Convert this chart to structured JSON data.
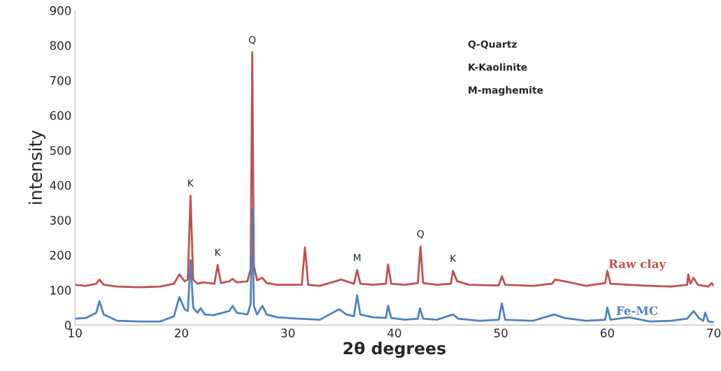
{
  "chart_data": {
    "type": "line",
    "xlabel": "2θ degrees",
    "ylabel": "intensity",
    "xlim": [
      10,
      70
    ],
    "xticks": [
      10,
      20,
      30,
      40,
      50,
      60,
      70
    ],
    "ylim": [
      0,
      900
    ],
    "yticks": [
      0,
      100,
      200,
      300,
      400,
      500,
      600,
      700,
      800,
      900
    ],
    "grid": false,
    "legend": false,
    "series": [
      {
        "name": "Raw clay",
        "color": "#c0504d",
        "x": [
          10,
          11,
          12,
          12.3,
          12.7,
          14,
          16,
          18,
          19.3,
          19.8,
          20.3,
          20.6,
          20.85,
          21.1,
          21.5,
          22,
          23.1,
          23.4,
          23.7,
          24.5,
          24.8,
          25.2,
          26.2,
          26.5,
          26.65,
          26.8,
          27.1,
          27.6,
          28,
          29,
          31.3,
          31.6,
          31.9,
          33,
          35,
          36.2,
          36.5,
          36.8,
          38,
          39.2,
          39.4,
          39.7,
          41,
          42.2,
          42.45,
          42.7,
          44,
          45.3,
          45.5,
          45.9,
          47,
          49.8,
          50.1,
          50.4,
          53,
          54.8,
          55.1,
          56,
          58,
          59.8,
          60,
          60.3,
          62,
          64,
          66,
          67.5,
          67.6,
          67.8,
          68.1,
          68.5,
          69.5,
          69.8,
          70
        ],
        "values": [
          115,
          112,
          118,
          130,
          115,
          110,
          108,
          110,
          118,
          145,
          125,
          130,
          370,
          130,
          118,
          122,
          118,
          172,
          120,
          125,
          132,
          122,
          125,
          160,
          780,
          170,
          128,
          135,
          120,
          115,
          115,
          222,
          115,
          112,
          130,
          118,
          157,
          118,
          115,
          118,
          173,
          118,
          115,
          120,
          225,
          120,
          115,
          118,
          155,
          125,
          115,
          113,
          140,
          115,
          112,
          118,
          130,
          125,
          112,
          120,
          155,
          118,
          115,
          112,
          110,
          115,
          145,
          118,
          135,
          115,
          110,
          120,
          112
        ]
      },
      {
        "name": "Fe-MC",
        "color": "#4f81bd",
        "x": [
          10,
          11,
          12,
          12.3,
          12.7,
          14,
          16,
          18,
          19.3,
          19.8,
          20.3,
          20.6,
          20.85,
          21.1,
          21.5,
          21.8,
          22.2,
          23,
          24.5,
          24.8,
          25.2,
          26.2,
          26.5,
          26.65,
          26.8,
          27.1,
          27.6,
          28,
          29,
          31,
          33,
          34.8,
          35.5,
          36.2,
          36.5,
          36.8,
          38,
          39.2,
          39.4,
          39.7,
          41,
          42.2,
          42.4,
          42.7,
          44,
          45.5,
          46,
          48,
          49.8,
          50.1,
          50.4,
          53,
          55,
          56,
          58,
          59.8,
          60,
          60.3,
          62,
          64,
          66,
          67.5,
          68.1,
          68.6,
          69,
          69.2,
          69.5,
          70
        ],
        "values": [
          18,
          20,
          35,
          68,
          30,
          12,
          10,
          10,
          25,
          80,
          45,
          40,
          185,
          50,
          35,
          48,
          30,
          28,
          40,
          55,
          35,
          30,
          60,
          330,
          55,
          30,
          55,
          30,
          22,
          18,
          15,
          45,
          30,
          25,
          85,
          30,
          22,
          20,
          55,
          20,
          15,
          18,
          48,
          18,
          15,
          30,
          18,
          12,
          15,
          62,
          15,
          12,
          30,
          20,
          12,
          15,
          50,
          15,
          22,
          10,
          12,
          18,
          40,
          20,
          12,
          35,
          10,
          8
        ]
      }
    ],
    "annotations": [
      "Q-Quartz",
      "K-Kaolinite",
      "M-maghemite",
      {
        "text": "K",
        "x": 20.85,
        "y": 370
      },
      {
        "text": "K",
        "x": 23.4,
        "y": 172
      },
      {
        "text": "Q",
        "x": 26.65,
        "y": 780
      },
      {
        "text": "M",
        "x": 36.5,
        "y": 157
      },
      {
        "text": "Q",
        "x": 42.45,
        "y": 225
      },
      {
        "text": "K",
        "x": 45.5,
        "y": 155
      }
    ]
  }
}
